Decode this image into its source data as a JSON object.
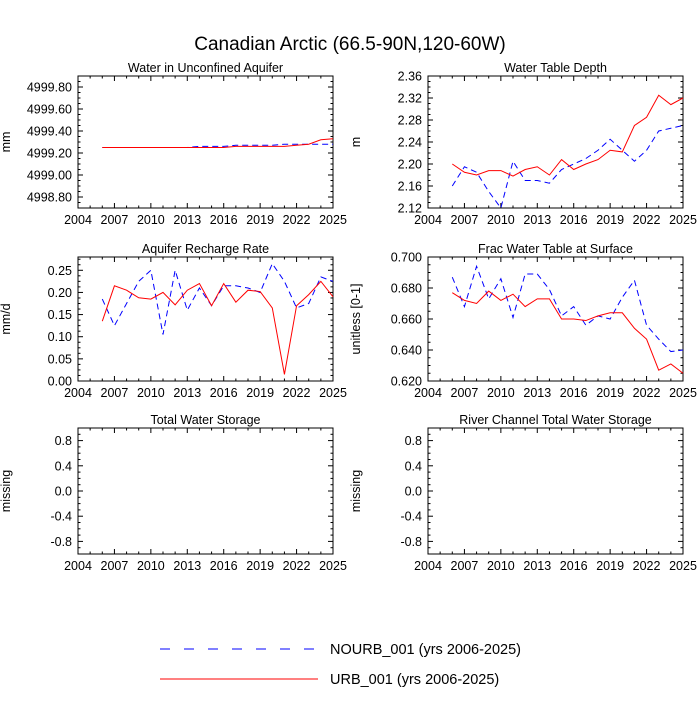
{
  "figure_title": "Canadian Arctic (66.5-90N,120-60W)",
  "colors": {
    "nourb": "#0000ff",
    "urb": "#ff0000",
    "axis": "#000000"
  },
  "legend": {
    "entries": [
      {
        "label": "NOURB_001 (yrs 2006-2025)",
        "style": "dashed",
        "color": "#0000ff"
      },
      {
        "label": "URB_001 (yrs 2006-2025)",
        "style": "solid",
        "color": "#ff0000"
      }
    ]
  },
  "chart_data": [
    {
      "type": "line",
      "title": "Water in Unconfined Aquifer",
      "xlabel": "",
      "ylabel": "mm",
      "xlim": [
        2004,
        2025
      ],
      "ylim": [
        4998.7,
        4999.9
      ],
      "xticks": [
        2004,
        2007,
        2010,
        2013,
        2016,
        2019,
        2022,
        2025
      ],
      "yticks": [
        4998.8,
        4999.0,
        4999.2,
        4999.4,
        4999.6,
        4999.8
      ],
      "ytick_labels": [
        "4998.80",
        "4999.00",
        "4999.20",
        "4999.40",
        "4999.60",
        "4999.80"
      ],
      "x": [
        2006,
        2007,
        2008,
        2009,
        2010,
        2011,
        2012,
        2013,
        2014,
        2015,
        2016,
        2017,
        2018,
        2019,
        2020,
        2021,
        2022,
        2023,
        2024,
        2025
      ],
      "series": [
        {
          "name": "NOURB_001",
          "values": [
            4999.25,
            4999.25,
            4999.25,
            4999.25,
            4999.25,
            4999.25,
            4999.25,
            4999.25,
            4999.26,
            4999.26,
            4999.26,
            4999.27,
            4999.27,
            4999.27,
            4999.27,
            4999.28,
            4999.28,
            4999.28,
            4999.28,
            4999.28
          ]
        },
        {
          "name": "URB_001",
          "values": [
            4999.25,
            4999.25,
            4999.25,
            4999.25,
            4999.25,
            4999.25,
            4999.25,
            4999.25,
            4999.25,
            4999.25,
            4999.25,
            4999.26,
            4999.26,
            4999.26,
            4999.26,
            4999.26,
            4999.27,
            4999.28,
            4999.32,
            4999.33
          ]
        }
      ]
    },
    {
      "type": "line",
      "title": "Water Table Depth",
      "xlabel": "",
      "ylabel": "m",
      "xlim": [
        2004,
        2025
      ],
      "ylim": [
        2.12,
        2.36
      ],
      "xticks": [
        2004,
        2007,
        2010,
        2013,
        2016,
        2019,
        2022,
        2025
      ],
      "yticks": [
        2.12,
        2.16,
        2.2,
        2.24,
        2.28,
        2.32,
        2.36
      ],
      "ytick_labels": [
        "2.12",
        "2.16",
        "2.20",
        "2.24",
        "2.28",
        "2.32",
        "2.36"
      ],
      "x": [
        2006,
        2007,
        2008,
        2009,
        2010,
        2011,
        2012,
        2013,
        2014,
        2015,
        2016,
        2017,
        2018,
        2019,
        2020,
        2021,
        2022,
        2023,
        2024,
        2025
      ],
      "series": [
        {
          "name": "NOURB_001",
          "values": [
            2.16,
            2.195,
            2.185,
            2.15,
            2.12,
            2.205,
            2.17,
            2.17,
            2.165,
            2.19,
            2.2,
            2.21,
            2.225,
            2.245,
            2.225,
            2.205,
            2.225,
            2.26,
            2.265,
            2.27
          ]
        },
        {
          "name": "URB_001",
          "values": [
            2.2,
            2.185,
            2.18,
            2.188,
            2.188,
            2.178,
            2.19,
            2.195,
            2.18,
            2.208,
            2.19,
            2.2,
            2.208,
            2.225,
            2.222,
            2.27,
            2.285,
            2.325,
            2.308,
            2.32
          ]
        }
      ]
    },
    {
      "type": "line",
      "title": "Aquifer Recharge Rate",
      "xlabel": "",
      "ylabel": "mm/d",
      "xlim": [
        2004,
        2025
      ],
      "ylim": [
        0.0,
        0.28
      ],
      "xticks": [
        2004,
        2007,
        2010,
        2013,
        2016,
        2019,
        2022,
        2025
      ],
      "yticks": [
        0.0,
        0.05,
        0.1,
        0.15,
        0.2,
        0.25
      ],
      "ytick_labels": [
        "0.00",
        "0.05",
        "0.10",
        "0.15",
        "0.20",
        "0.25"
      ],
      "x": [
        2006,
        2007,
        2008,
        2009,
        2010,
        2011,
        2012,
        2013,
        2014,
        2015,
        2016,
        2017,
        2018,
        2019,
        2020,
        2021,
        2022,
        2023,
        2024,
        2025
      ],
      "series": [
        {
          "name": "NOURB_001",
          "values": [
            0.185,
            0.125,
            0.175,
            0.225,
            0.25,
            0.105,
            0.25,
            0.16,
            0.21,
            0.17,
            0.215,
            0.215,
            0.21,
            0.2,
            0.265,
            0.225,
            0.165,
            0.175,
            0.235,
            0.225
          ]
        },
        {
          "name": "URB_001",
          "values": [
            0.135,
            0.215,
            0.205,
            0.188,
            0.185,
            0.2,
            0.172,
            0.205,
            0.22,
            0.17,
            0.22,
            0.178,
            0.205,
            0.202,
            0.165,
            0.015,
            0.17,
            0.195,
            0.225,
            0.19
          ]
        }
      ]
    },
    {
      "type": "line",
      "title": "Frac Water Table at Surface",
      "xlabel": "",
      "ylabel": "unitless [0-1]",
      "xlim": [
        2004,
        2025
      ],
      "ylim": [
        0.62,
        0.7
      ],
      "xticks": [
        2004,
        2007,
        2010,
        2013,
        2016,
        2019,
        2022,
        2025
      ],
      "yticks": [
        0.62,
        0.64,
        0.66,
        0.68,
        0.7
      ],
      "ytick_labels": [
        "0.620",
        "0.640",
        "0.660",
        "0.680",
        "0.700"
      ],
      "x": [
        2006,
        2007,
        2008,
        2009,
        2010,
        2011,
        2012,
        2013,
        2014,
        2015,
        2016,
        2017,
        2018,
        2019,
        2020,
        2021,
        2022,
        2023,
        2024,
        2025
      ],
      "series": [
        {
          "name": "NOURB_001",
          "values": [
            0.687,
            0.668,
            0.694,
            0.673,
            0.686,
            0.661,
            0.689,
            0.689,
            0.679,
            0.662,
            0.668,
            0.656,
            0.662,
            0.66,
            0.674,
            0.685,
            0.656,
            0.647,
            0.639,
            0.64
          ]
        },
        {
          "name": "URB_001",
          "values": [
            0.677,
            0.672,
            0.67,
            0.678,
            0.672,
            0.676,
            0.668,
            0.673,
            0.673,
            0.66,
            0.66,
            0.659,
            0.662,
            0.664,
            0.664,
            0.654,
            0.647,
            0.627,
            0.631,
            0.625
          ]
        }
      ]
    },
    {
      "type": "line",
      "title": "Total Water Storage",
      "xlabel": "",
      "ylabel": "missing",
      "xlim": [
        2004,
        2025
      ],
      "ylim": [
        -1.0,
        1.0
      ],
      "xticks": [
        2004,
        2007,
        2010,
        2013,
        2016,
        2019,
        2022,
        2025
      ],
      "yticks": [
        -0.8,
        -0.4,
        0.0,
        0.4,
        0.8
      ],
      "ytick_labels": [
        "-0.8",
        "-0.4",
        "0.0",
        "0.4",
        "0.8"
      ],
      "x": [],
      "series": []
    },
    {
      "type": "line",
      "title": "River Channel Total Water Storage",
      "xlabel": "",
      "ylabel": "missing",
      "xlim": [
        2004,
        2025
      ],
      "ylim": [
        -1.0,
        1.0
      ],
      "xticks": [
        2004,
        2007,
        2010,
        2013,
        2016,
        2019,
        2022,
        2025
      ],
      "yticks": [
        -0.8,
        -0.4,
        0.0,
        0.4,
        0.8
      ],
      "ytick_labels": [
        "-0.8",
        "-0.4",
        "0.0",
        "0.4",
        "0.8"
      ],
      "x": [],
      "series": []
    }
  ]
}
